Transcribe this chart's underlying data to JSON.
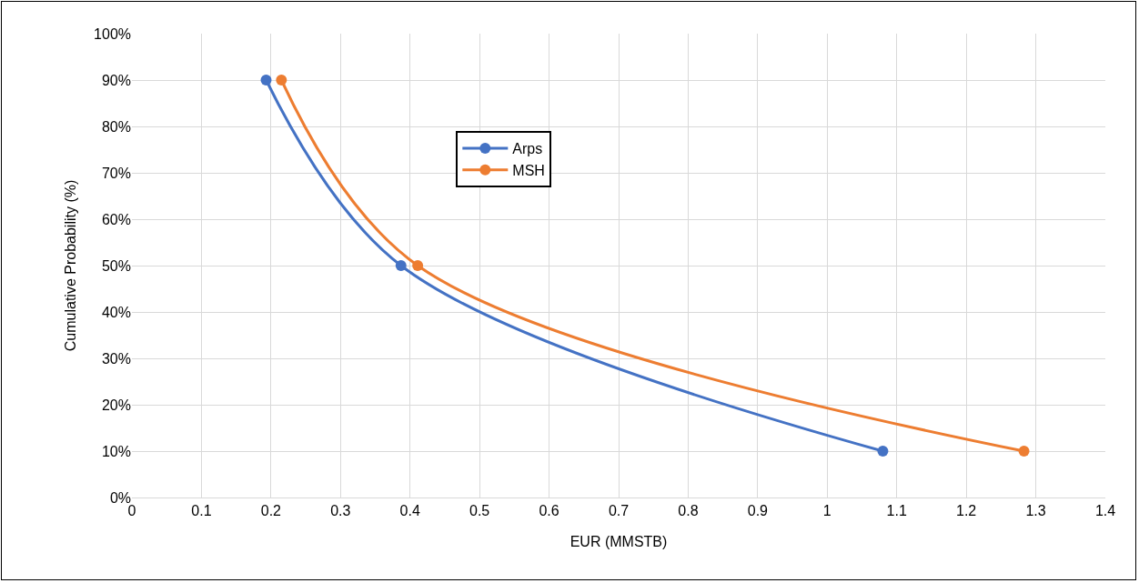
{
  "chart_data": {
    "type": "line",
    "xlabel": "EUR (MMSTB)",
    "ylabel": "Cumulative Probability (%)",
    "series": [
      {
        "name": "Arps",
        "color": "#4472c4",
        "x": [
          0.193,
          0.387,
          1.08
        ],
        "values": [
          90,
          50,
          10
        ]
      },
      {
        "name": "MSH",
        "color": "#ed7d31",
        "x": [
          0.215,
          0.411,
          1.283
        ],
        "values": [
          90,
          50,
          10
        ]
      }
    ],
    "xlim": [
      0,
      1.4
    ],
    "xticks": [
      0,
      0.1,
      0.2,
      0.3,
      0.4,
      0.5,
      0.6,
      0.7,
      0.8,
      0.9,
      1,
      1.1,
      1.2,
      1.3,
      1.4
    ],
    "ylim": [
      0,
      100
    ],
    "yticks": [
      {
        "value": 0,
        "label": "0%"
      },
      {
        "value": 10,
        "label": "10%"
      },
      {
        "value": 20,
        "label": "20%"
      },
      {
        "value": 30,
        "label": "30%"
      },
      {
        "value": 40,
        "label": "40%"
      },
      {
        "value": 50,
        "label": "50%"
      },
      {
        "value": 60,
        "label": "60%"
      },
      {
        "value": 70,
        "label": "70%"
      },
      {
        "value": 80,
        "label": "80%"
      },
      {
        "value": 90,
        "label": "90%"
      },
      {
        "value": 100,
        "label": "100%"
      }
    ],
    "grid": true,
    "legend": "top",
    "marker": "circle",
    "line_style": "solid"
  }
}
